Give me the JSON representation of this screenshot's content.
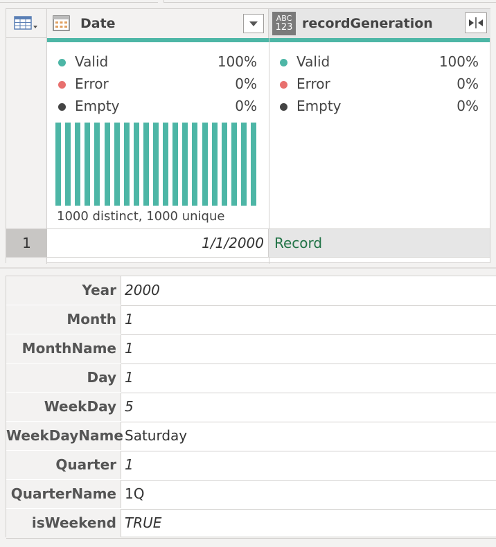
{
  "columns": {
    "date": {
      "title": "Date"
    },
    "record": {
      "title": "recordGeneration",
      "type_badge_top": "ABC",
      "type_badge_bottom": "123"
    }
  },
  "quality": {
    "date": [
      {
        "label": "Valid",
        "percent": "100%"
      },
      {
        "label": "Error",
        "percent": "0%"
      },
      {
        "label": "Empty",
        "percent": "0%"
      }
    ],
    "record": [
      {
        "label": "Valid",
        "percent": "100%"
      },
      {
        "label": "Error",
        "percent": "0%"
      },
      {
        "label": "Empty",
        "percent": "0%"
      }
    ]
  },
  "distribution": {
    "summary": "1000 distinct, 1000 unique",
    "bar_count": 21
  },
  "rows": [
    {
      "num": "1",
      "date": "1/1/2000",
      "record": "Record"
    }
  ],
  "details": [
    {
      "key": "Year",
      "value": "2000",
      "italic": true
    },
    {
      "key": "Month",
      "value": "1",
      "italic": true
    },
    {
      "key": "MonthName",
      "value": "1",
      "italic": true
    },
    {
      "key": "Day",
      "value": "1",
      "italic": true
    },
    {
      "key": "WeekDay",
      "value": "5",
      "italic": true
    },
    {
      "key": "WeekDayName",
      "value": "Saturday",
      "italic": false
    },
    {
      "key": "Quarter",
      "value": "1",
      "italic": true
    },
    {
      "key": "QuarterName",
      "value": "1Q",
      "italic": false
    },
    {
      "key": "isWeekend",
      "value": "TRUE",
      "italic": true
    }
  ],
  "colors": {
    "valid": "#4db6a6",
    "error": "#e8706e",
    "empty": "#444444"
  }
}
